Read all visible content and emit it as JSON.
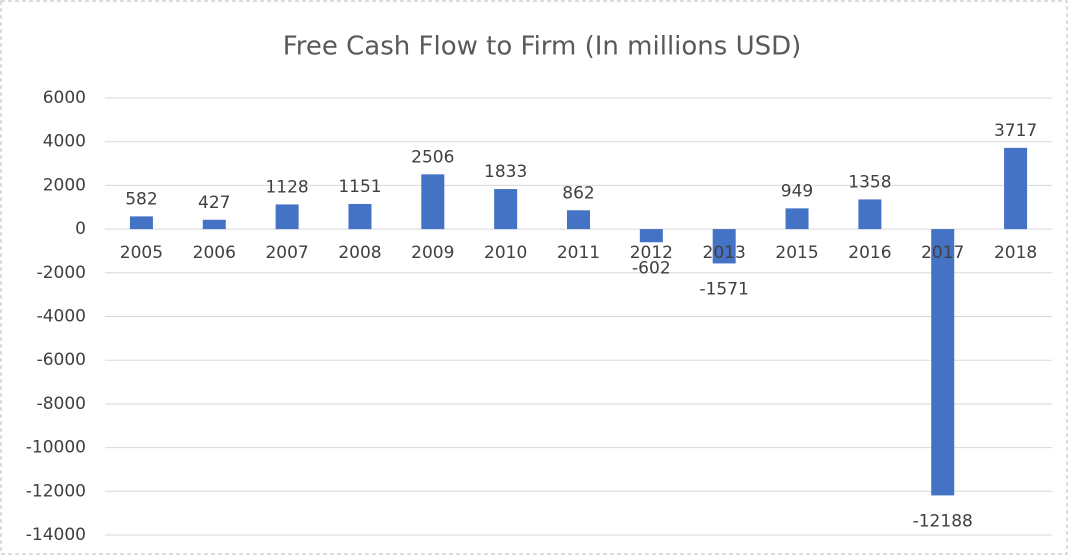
{
  "chart_data": {
    "type": "bar",
    "title": "Free Cash Flow to Firm (In millions USD)",
    "categories": [
      "2005",
      "2006",
      "2007",
      "2008",
      "2009",
      "2010",
      "2011",
      "2012",
      "2013",
      "2015",
      "2016",
      "2017",
      "2018"
    ],
    "values": [
      582,
      427,
      1128,
      1151,
      2506,
      1833,
      862,
      -602,
      -1571,
      949,
      1358,
      -12188,
      3717
    ],
    "color": "#4472c4",
    "ylim": [
      -14000,
      6000
    ],
    "yticks": [
      -14000,
      -12000,
      -10000,
      -8000,
      -6000,
      -4000,
      -2000,
      0,
      2000,
      4000,
      6000
    ],
    "grid": true
  }
}
